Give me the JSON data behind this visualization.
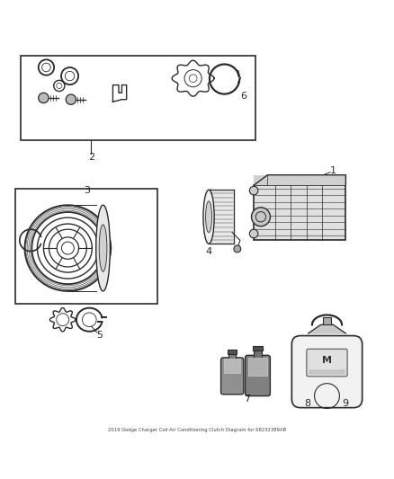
{
  "title": "2019 Dodge Charger Coil-Air Conditioning Clutch Diagram for 68232389AB",
  "bg_color": "#ffffff",
  "line_color": "#2a2a2a",
  "label_color": "#222222",
  "fig_width": 4.38,
  "fig_height": 5.33,
  "dpi": 100
}
